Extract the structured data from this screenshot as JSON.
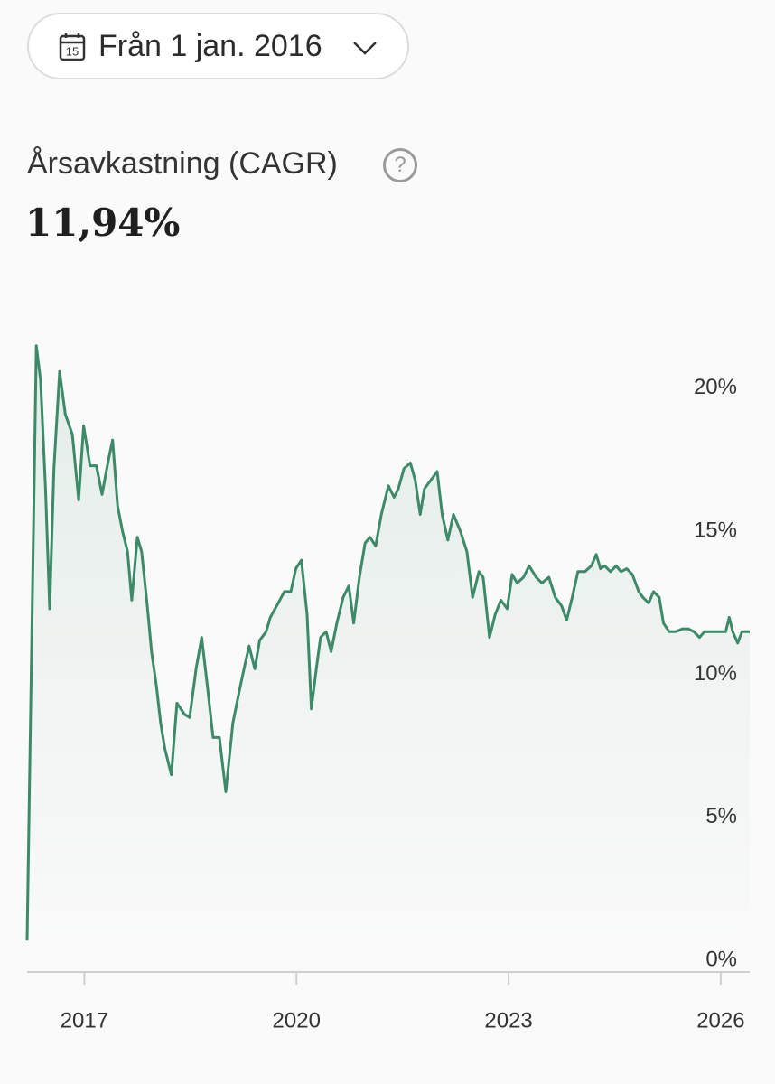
{
  "date_filter": {
    "calendar_day": "15",
    "label": "Från 1 jan. 2016"
  },
  "header": {
    "title": "Årsavkastning (CAGR)",
    "info_icon": "?",
    "value": "11,94%"
  },
  "chart_data": {
    "type": "line",
    "color": "#3d8a68",
    "grid": false,
    "xlim": [
      2016.19,
      2026.41
    ],
    "xticks": [
      2017,
      2020,
      2023,
      2026
    ],
    "ylim": [
      0,
      22.3
    ],
    "yticks": [
      {
        "value": 0,
        "label": "0%"
      },
      {
        "value": 5,
        "label": "5%"
      },
      {
        "value": 10,
        "label": "10%"
      },
      {
        "value": 15,
        "label": "15%"
      },
      {
        "value": 20,
        "label": "20%"
      }
    ],
    "x": [
      2016.19,
      2016.32,
      2016.38,
      2016.45,
      2016.51,
      2016.57,
      2016.65,
      2016.73,
      2016.83,
      2016.92,
      2016.99,
      2017.08,
      2017.17,
      2017.25,
      2017.34,
      2017.4,
      2017.47,
      2017.54,
      2017.61,
      2017.67,
      2017.75,
      2017.81,
      2017.89,
      2017.95,
      2018.02,
      2018.08,
      2018.14,
      2018.23,
      2018.31,
      2018.42,
      2018.49,
      2018.58,
      2018.66,
      2018.74,
      2018.82,
      2018.91,
      2019.0,
      2019.1,
      2019.19,
      2019.25,
      2019.33,
      2019.41,
      2019.48,
      2019.57,
      2019.63,
      2019.72,
      2019.83,
      2019.92,
      2019.99,
      2020.07,
      2020.15,
      2020.21,
      2020.28,
      2020.34,
      2020.42,
      2020.49,
      2020.57,
      2020.66,
      2020.74,
      2020.81,
      2020.89,
      2020.97,
      2021.04,
      2021.12,
      2021.2,
      2021.3,
      2021.38,
      2021.44,
      2021.52,
      2021.61,
      2021.68,
      2021.75,
      2021.81,
      2021.9,
      2021.99,
      2022.06,
      2022.14,
      2022.22,
      2022.32,
      2022.41,
      2022.49,
      2022.58,
      2022.64,
      2022.73,
      2022.81,
      2022.89,
      2022.98,
      2023.05,
      2023.12,
      2023.21,
      2023.29,
      2023.39,
      2023.47,
      2023.57,
      2023.66,
      2023.75,
      2023.82,
      2023.9,
      2023.98,
      2024.08,
      2024.17,
      2024.24,
      2024.3,
      2024.36,
      2024.44,
      2024.52,
      2024.59,
      2024.67,
      2024.75,
      2024.84,
      2024.9,
      2024.98,
      2025.05,
      2025.13,
      2025.19,
      2025.27,
      2025.36,
      2025.46,
      2025.54,
      2025.62,
      2025.7,
      2025.77,
      2025.9,
      2026.02,
      2026.07,
      2026.12,
      2026.17,
      2026.24,
      2026.3,
      2026.41
    ],
    "values": [
      1.1,
      21.9,
      20.7,
      16.9,
      12.7,
      17.6,
      21.0,
      19.5,
      18.8,
      16.5,
      19.1,
      17.7,
      17.7,
      16.7,
      17.9,
      18.6,
      16.3,
      15.4,
      14.7,
      13.0,
      15.2,
      14.7,
      12.8,
      11.2,
      10.0,
      8.7,
      7.8,
      6.9,
      9.4,
      9.0,
      8.9,
      10.6,
      11.7,
      10.0,
      8.2,
      8.2,
      6.3,
      8.7,
      9.8,
      10.5,
      11.4,
      10.6,
      11.6,
      11.9,
      12.4,
      12.8,
      13.3,
      13.3,
      14.1,
      14.4,
      12.5,
      9.2,
      10.6,
      11.7,
      11.9,
      11.2,
      12.2,
      13.1,
      13.5,
      12.2,
      13.8,
      15.0,
      15.2,
      14.9,
      16.0,
      17.0,
      16.6,
      16.9,
      17.6,
      17.8,
      17.2,
      16.0,
      16.9,
      17.2,
      17.5,
      16.0,
      15.1,
      16.0,
      15.4,
      14.7,
      13.1,
      14.0,
      13.8,
      11.7,
      12.5,
      13.0,
      12.7,
      13.9,
      13.6,
      13.8,
      14.2,
      13.8,
      13.6,
      13.8,
      13.1,
      12.8,
      12.3,
      13.1,
      14.0,
      14.0,
      14.2,
      14.6,
      14.1,
      14.2,
      14.0,
      14.2,
      14.0,
      14.1,
      13.9,
      13.3,
      13.1,
      12.9,
      13.3,
      13.1,
      12.2,
      11.9,
      11.9,
      12.0,
      12.0,
      11.9,
      11.7,
      11.9,
      11.9,
      11.9,
      11.9,
      12.4,
      11.9,
      11.5,
      11.9,
      11.9
    ]
  }
}
